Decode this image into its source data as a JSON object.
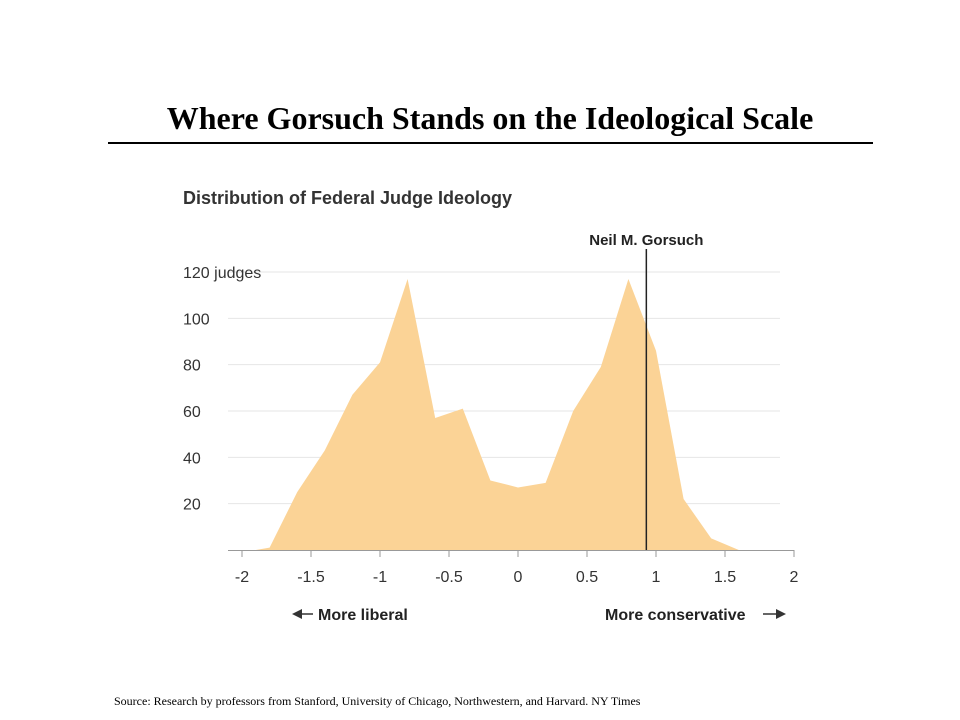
{
  "slide": {
    "title": "Where Gorsuch Stands on the Ideological Scale",
    "source": "Source: Research by professors from Stanford, University of Chicago,  Northwestern, and Harvard. NY Times"
  },
  "chart_data": {
    "type": "area",
    "title": "Distribution of Federal Judge Ideology",
    "x": [
      -1.9,
      -1.8,
      -1.6,
      -1.4,
      -1.2,
      -1.0,
      -0.8,
      -0.6,
      -0.4,
      -0.2,
      0.0,
      0.2,
      0.4,
      0.6,
      0.8,
      1.0,
      1.2,
      1.4,
      1.6,
      1.8
    ],
    "y": [
      0,
      1,
      25,
      43,
      67,
      81,
      117,
      57,
      61,
      30,
      27,
      29,
      60,
      79,
      117,
      86,
      22,
      5,
      0,
      0
    ],
    "xlim": [
      -2,
      2
    ],
    "ylim": [
      0,
      120
    ],
    "x_ticks": [
      "-2",
      "-1.5",
      "-1",
      "-0.5",
      "0",
      "0.5",
      "1",
      "1.5",
      "2"
    ],
    "x_tick_values": [
      -2,
      -1.5,
      -1,
      -0.5,
      0,
      0.5,
      1,
      1.5,
      2
    ],
    "y_ticks": [
      "20",
      "40",
      "60",
      "80",
      "100",
      "120 judges"
    ],
    "y_tick_values": [
      20,
      40,
      60,
      80,
      100,
      120
    ],
    "fill_color": "#fbd396",
    "marker": {
      "label": "Neil M. Gorsuch",
      "x": 0.93
    },
    "left_direction": "More liberal",
    "right_direction": "More conservative",
    "grid": true
  }
}
